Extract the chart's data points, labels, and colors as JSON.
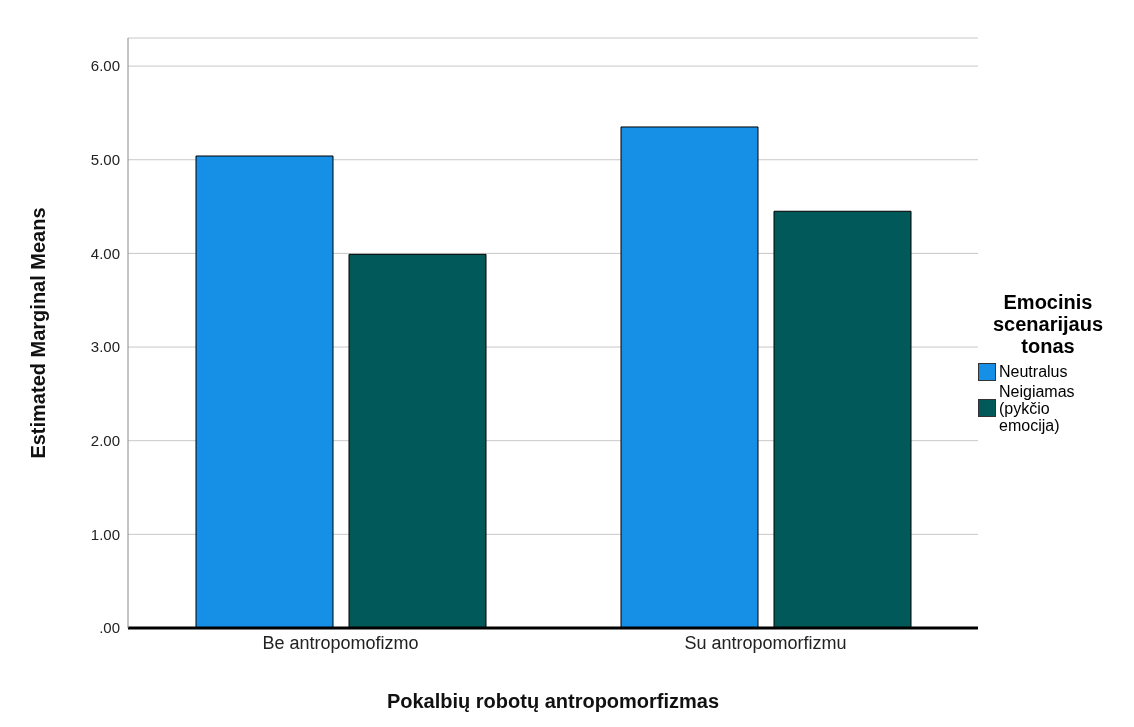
{
  "chart_data": {
    "type": "bar",
    "xlabel": "Pokalbių robotų antropomorfizmas",
    "ylabel": "Estimated Marginal Means",
    "legend_title": "Emocinis scenarijaus tonas",
    "categories": [
      "Be antropomofizmo",
      "Su antropomorfizmu"
    ],
    "series": [
      {
        "name": "Neutralus",
        "color": "#1590e6",
        "values": [
          5.04,
          5.35
        ]
      },
      {
        "name": "Neigiamas (pykčio emocija)",
        "color": "#02595a",
        "values": [
          3.99,
          4.45
        ]
      }
    ],
    "ylim": [
      0,
      6.3
    ],
    "yticks": [
      {
        "value": 0,
        "label": ".00"
      },
      {
        "value": 1,
        "label": "1.00"
      },
      {
        "value": 2,
        "label": "2.00"
      },
      {
        "value": 3,
        "label": "3.00"
      },
      {
        "value": 4,
        "label": "4.00"
      },
      {
        "value": 5,
        "label": "5.00"
      },
      {
        "value": 6,
        "label": "6.00"
      }
    ],
    "grid": "y",
    "legend": "right"
  }
}
